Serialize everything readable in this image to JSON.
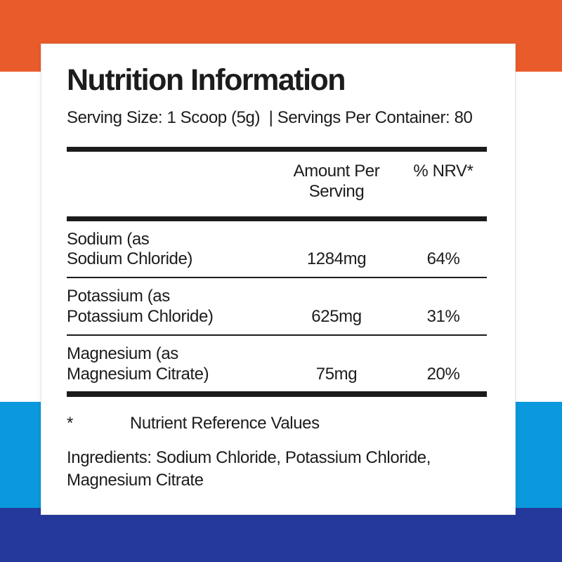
{
  "label": {
    "title": "Nutrition Information",
    "serving_line": "Serving Size: 1 Scoop (5g)  | Servings Per Container: 80"
  },
  "table": {
    "header": {
      "amount": "Amount Per\nServing",
      "nrv": "% NRV*"
    },
    "rows": [
      {
        "nutrient": "Sodium (as\nSodium Chloride)",
        "amount": "1284mg",
        "nrv": "64%"
      },
      {
        "nutrient": "Potassium (as\nPotassium Chloride)",
        "amount": "625mg",
        "nrv": "31%"
      },
      {
        "nutrient": "Magnesium (as\nMagnesium Citrate)",
        "amount": "75mg",
        "nrv": "20%"
      }
    ]
  },
  "footnote": {
    "symbol": "*",
    "text": "Nutrient Reference Values"
  },
  "ingredients": "Ingredients: Sodium Chloride, Potassium Chloride, Magnesium Citrate",
  "colors": {
    "orange": "#EA5B2B",
    "light_blue": "#0999DC",
    "dark_blue": "#24399B",
    "rule": "#1B1B1B",
    "ink": "#1C1C1C",
    "card_border": "#E2E2E2"
  }
}
